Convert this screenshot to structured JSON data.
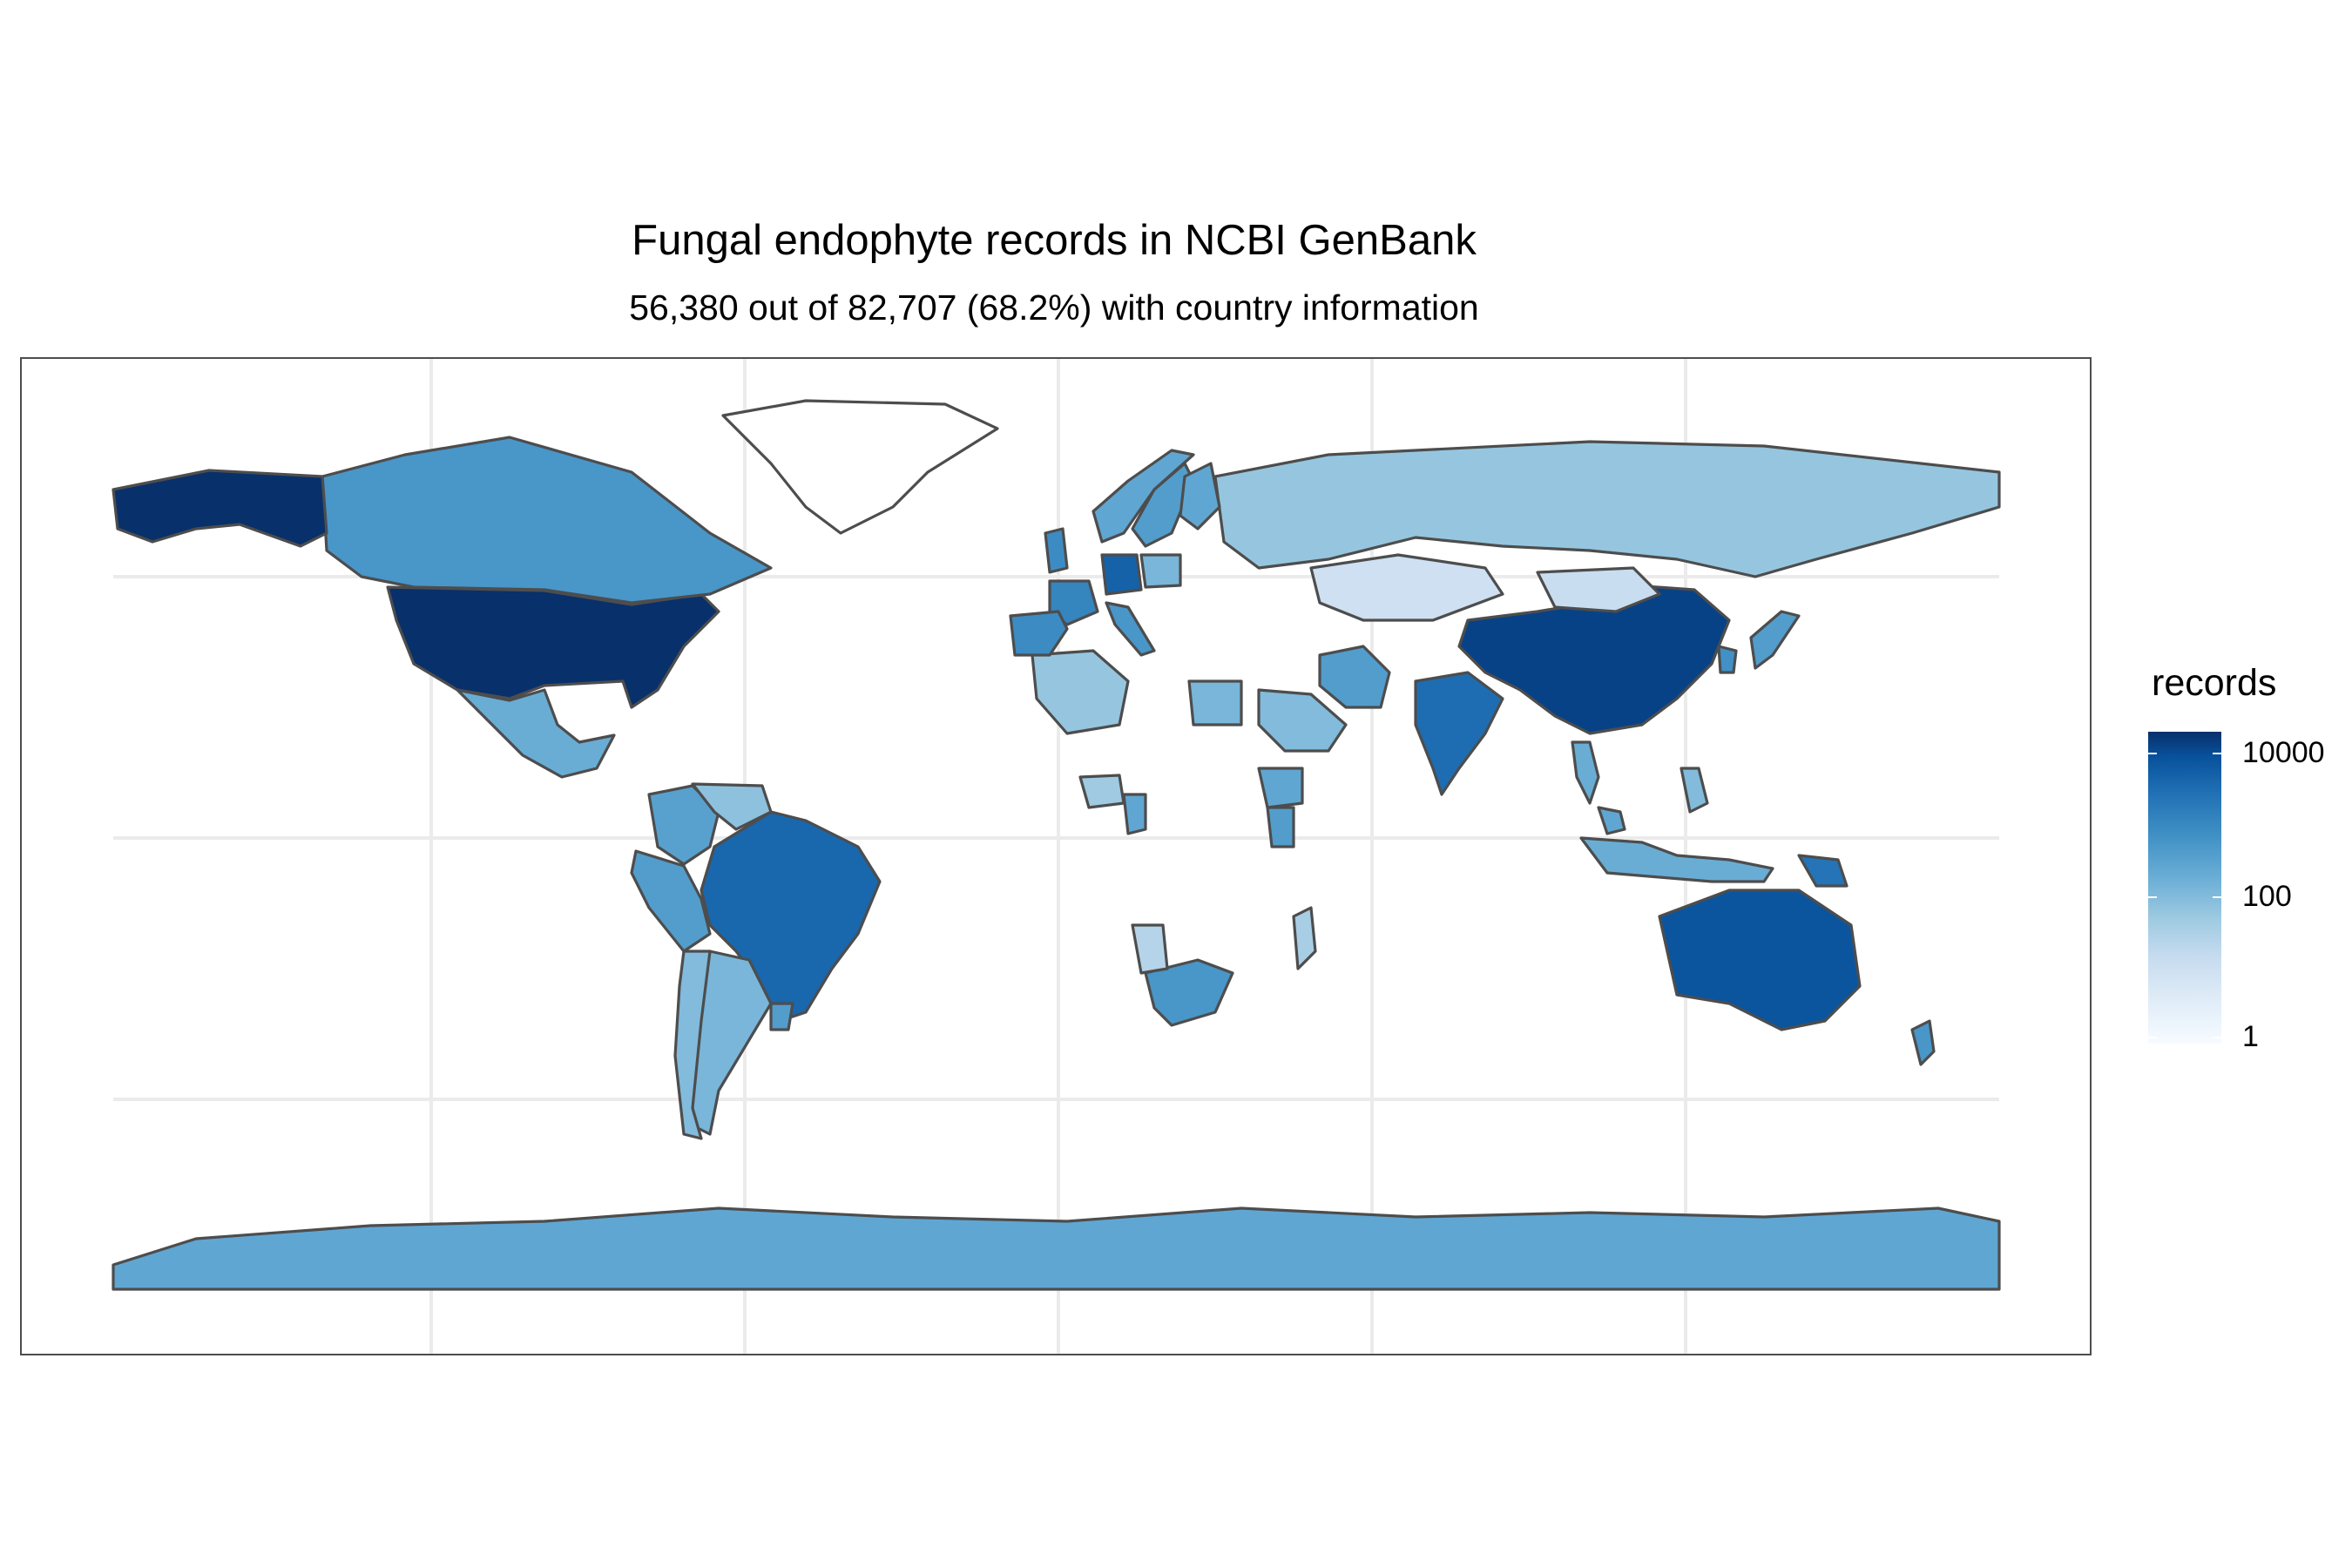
{
  "title": "Fungal endophyte records in NCBI GenBank",
  "subtitle": "56,380 out of 82,707 (68.2%) with country information",
  "legend": {
    "title": "records",
    "scale": "log10",
    "breaks": [
      "10000",
      "100",
      "1"
    ],
    "low_color": "#f7fbff",
    "high_color": "#08306b"
  },
  "map_data": {
    "projection": "equirectangular",
    "missing_color": "#ffffff",
    "border_color": "#4d4d4d",
    "regions": [
      {
        "name": "United States",
        "records": 20000
      },
      {
        "name": "China",
        "records": 10000
      },
      {
        "name": "Canada",
        "records": 400
      },
      {
        "name": "Alaska (United States)",
        "records": 20000
      },
      {
        "name": "Mexico",
        "records": 150
      },
      {
        "name": "Brazil",
        "records": 2500
      },
      {
        "name": "Argentina",
        "records": 100
      },
      {
        "name": "Chile",
        "records": 80
      },
      {
        "name": "Peru",
        "records": 300
      },
      {
        "name": "Colombia",
        "records": 250
      },
      {
        "name": "Venezuela",
        "records": 60
      },
      {
        "name": "Uruguay",
        "records": 300
      },
      {
        "name": "Australia",
        "records": 5000
      },
      {
        "name": "New Zealand",
        "records": 400
      },
      {
        "name": "India",
        "records": 2000
      },
      {
        "name": "Russia",
        "records": 50
      },
      {
        "name": "Kazakhstan",
        "records": 8
      },
      {
        "name": "Mongolia",
        "records": 10
      },
      {
        "name": "Japan",
        "records": 300
      },
      {
        "name": "South Korea",
        "records": 500
      },
      {
        "name": "Thailand",
        "records": 150
      },
      {
        "name": "Malaysia",
        "records": 200
      },
      {
        "name": "Indonesia",
        "records": 150
      },
      {
        "name": "Papua New Guinea",
        "records": 1500
      },
      {
        "name": "Philippines",
        "records": 80
      },
      {
        "name": "Iran",
        "records": 300
      },
      {
        "name": "Saudi Arabia",
        "records": 80
      },
      {
        "name": "Egypt",
        "records": 100
      },
      {
        "name": "Algeria",
        "records": 50
      },
      {
        "name": "Ethiopia",
        "records": 200
      },
      {
        "name": "Kenya",
        "records": 300
      },
      {
        "name": "Nigeria",
        "records": 40
      },
      {
        "name": "Cameroon",
        "records": 200
      },
      {
        "name": "South Africa",
        "records": 400
      },
      {
        "name": "Namibia",
        "records": 20
      },
      {
        "name": "Madagascar",
        "records": 30
      },
      {
        "name": "Germany",
        "records": 3000
      },
      {
        "name": "France",
        "records": 800
      },
      {
        "name": "Spain",
        "records": 600
      },
      {
        "name": "United Kingdom",
        "records": 600
      },
      {
        "name": "Italy",
        "records": 400
      },
      {
        "name": "Sweden",
        "records": 300
      },
      {
        "name": "Finland",
        "records": 200
      },
      {
        "name": "Norway",
        "records": 200
      },
      {
        "name": "Poland",
        "records": 100
      },
      {
        "name": "Greenland",
        "records": 0
      },
      {
        "name": "Antarctica",
        "records": 200
      }
    ]
  }
}
